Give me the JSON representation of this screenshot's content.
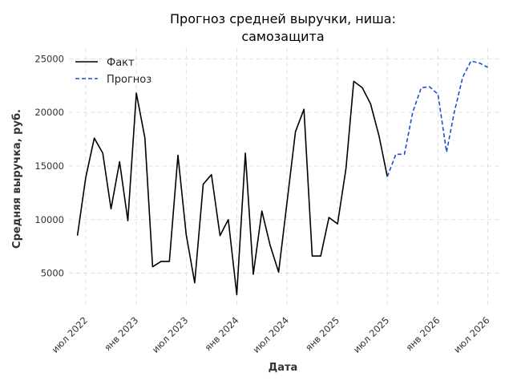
{
  "chart_data": {
    "type": "line",
    "title_lines": [
      "Прогноз средней выручки, ниша:",
      "самозащита"
    ],
    "xlabel": "Дата",
    "ylabel": "Средняя выручка, руб.",
    "ylim": [
      1900,
      26000
    ],
    "xlim": [
      "2022-05-01",
      "2026-08-15"
    ],
    "x_ticks": [
      {
        "date": "2022-07-01",
        "label": "июл 2022"
      },
      {
        "date": "2023-01-01",
        "label": "янв 2023"
      },
      {
        "date": "2023-07-01",
        "label": "июл 2023"
      },
      {
        "date": "2024-01-01",
        "label": "янв 2024"
      },
      {
        "date": "2024-07-01",
        "label": "июл 2024"
      },
      {
        "date": "2025-01-01",
        "label": "янв 2025"
      },
      {
        "date": "2025-07-01",
        "label": "июл 2025"
      },
      {
        "date": "2026-01-01",
        "label": "янв 2026"
      },
      {
        "date": "2026-07-01",
        "label": "июл 2026"
      }
    ],
    "y_ticks": [
      {
        "value": 5000,
        "label": "5000"
      },
      {
        "value": 10000,
        "label": "10000"
      },
      {
        "value": 15000,
        "label": "15000"
      },
      {
        "value": 20000,
        "label": "20000"
      },
      {
        "value": 25000,
        "label": "25000"
      }
    ],
    "grid": true,
    "legend_position": "top-left",
    "series": [
      {
        "name": "Факт",
        "color": "#000000",
        "style": "solid",
        "x": [
          "2022-06-01",
          "2022-07-01",
          "2022-08-01",
          "2022-09-01",
          "2022-10-01",
          "2022-11-01",
          "2022-12-01",
          "2023-01-01",
          "2023-02-01",
          "2023-03-01",
          "2023-04-01",
          "2023-05-01",
          "2023-06-01",
          "2023-07-01",
          "2023-08-01",
          "2023-09-01",
          "2023-10-01",
          "2023-11-01",
          "2023-12-01",
          "2024-01-01",
          "2024-02-01",
          "2024-03-01",
          "2024-04-01",
          "2024-05-01",
          "2024-06-01",
          "2024-07-01",
          "2024-08-01",
          "2024-09-01",
          "2024-10-01",
          "2024-11-01",
          "2024-12-01",
          "2025-01-01",
          "2025-02-01",
          "2025-03-01",
          "2025-04-01",
          "2025-05-01",
          "2025-06-01",
          "2025-07-01"
        ],
        "values": [
          8500,
          13900,
          17600,
          16200,
          11000,
          15400,
          9900,
          21800,
          17600,
          5600,
          6100,
          6100,
          16000,
          8600,
          4100,
          13300,
          14200,
          8500,
          10000,
          3000,
          16200,
          4900,
          10800,
          7600,
          5100,
          11500,
          18200,
          20300,
          6600,
          6600,
          10200,
          9600,
          14800,
          22900,
          22300,
          20800,
          17800,
          14000
        ]
      },
      {
        "name": "Прогноз",
        "color": "#1f4fd1",
        "style": "dashed",
        "x": [
          "2025-07-01",
          "2025-08-01",
          "2025-09-01",
          "2025-10-01",
          "2025-11-01",
          "2025-12-01",
          "2026-01-01",
          "2026-02-01",
          "2026-03-01",
          "2026-04-01",
          "2026-05-01",
          "2026-06-01",
          "2026-07-01"
        ],
        "values": [
          14000,
          16100,
          16100,
          20000,
          22300,
          22400,
          21700,
          16300,
          20000,
          23300,
          24800,
          24600,
          24200
        ]
      }
    ]
  }
}
